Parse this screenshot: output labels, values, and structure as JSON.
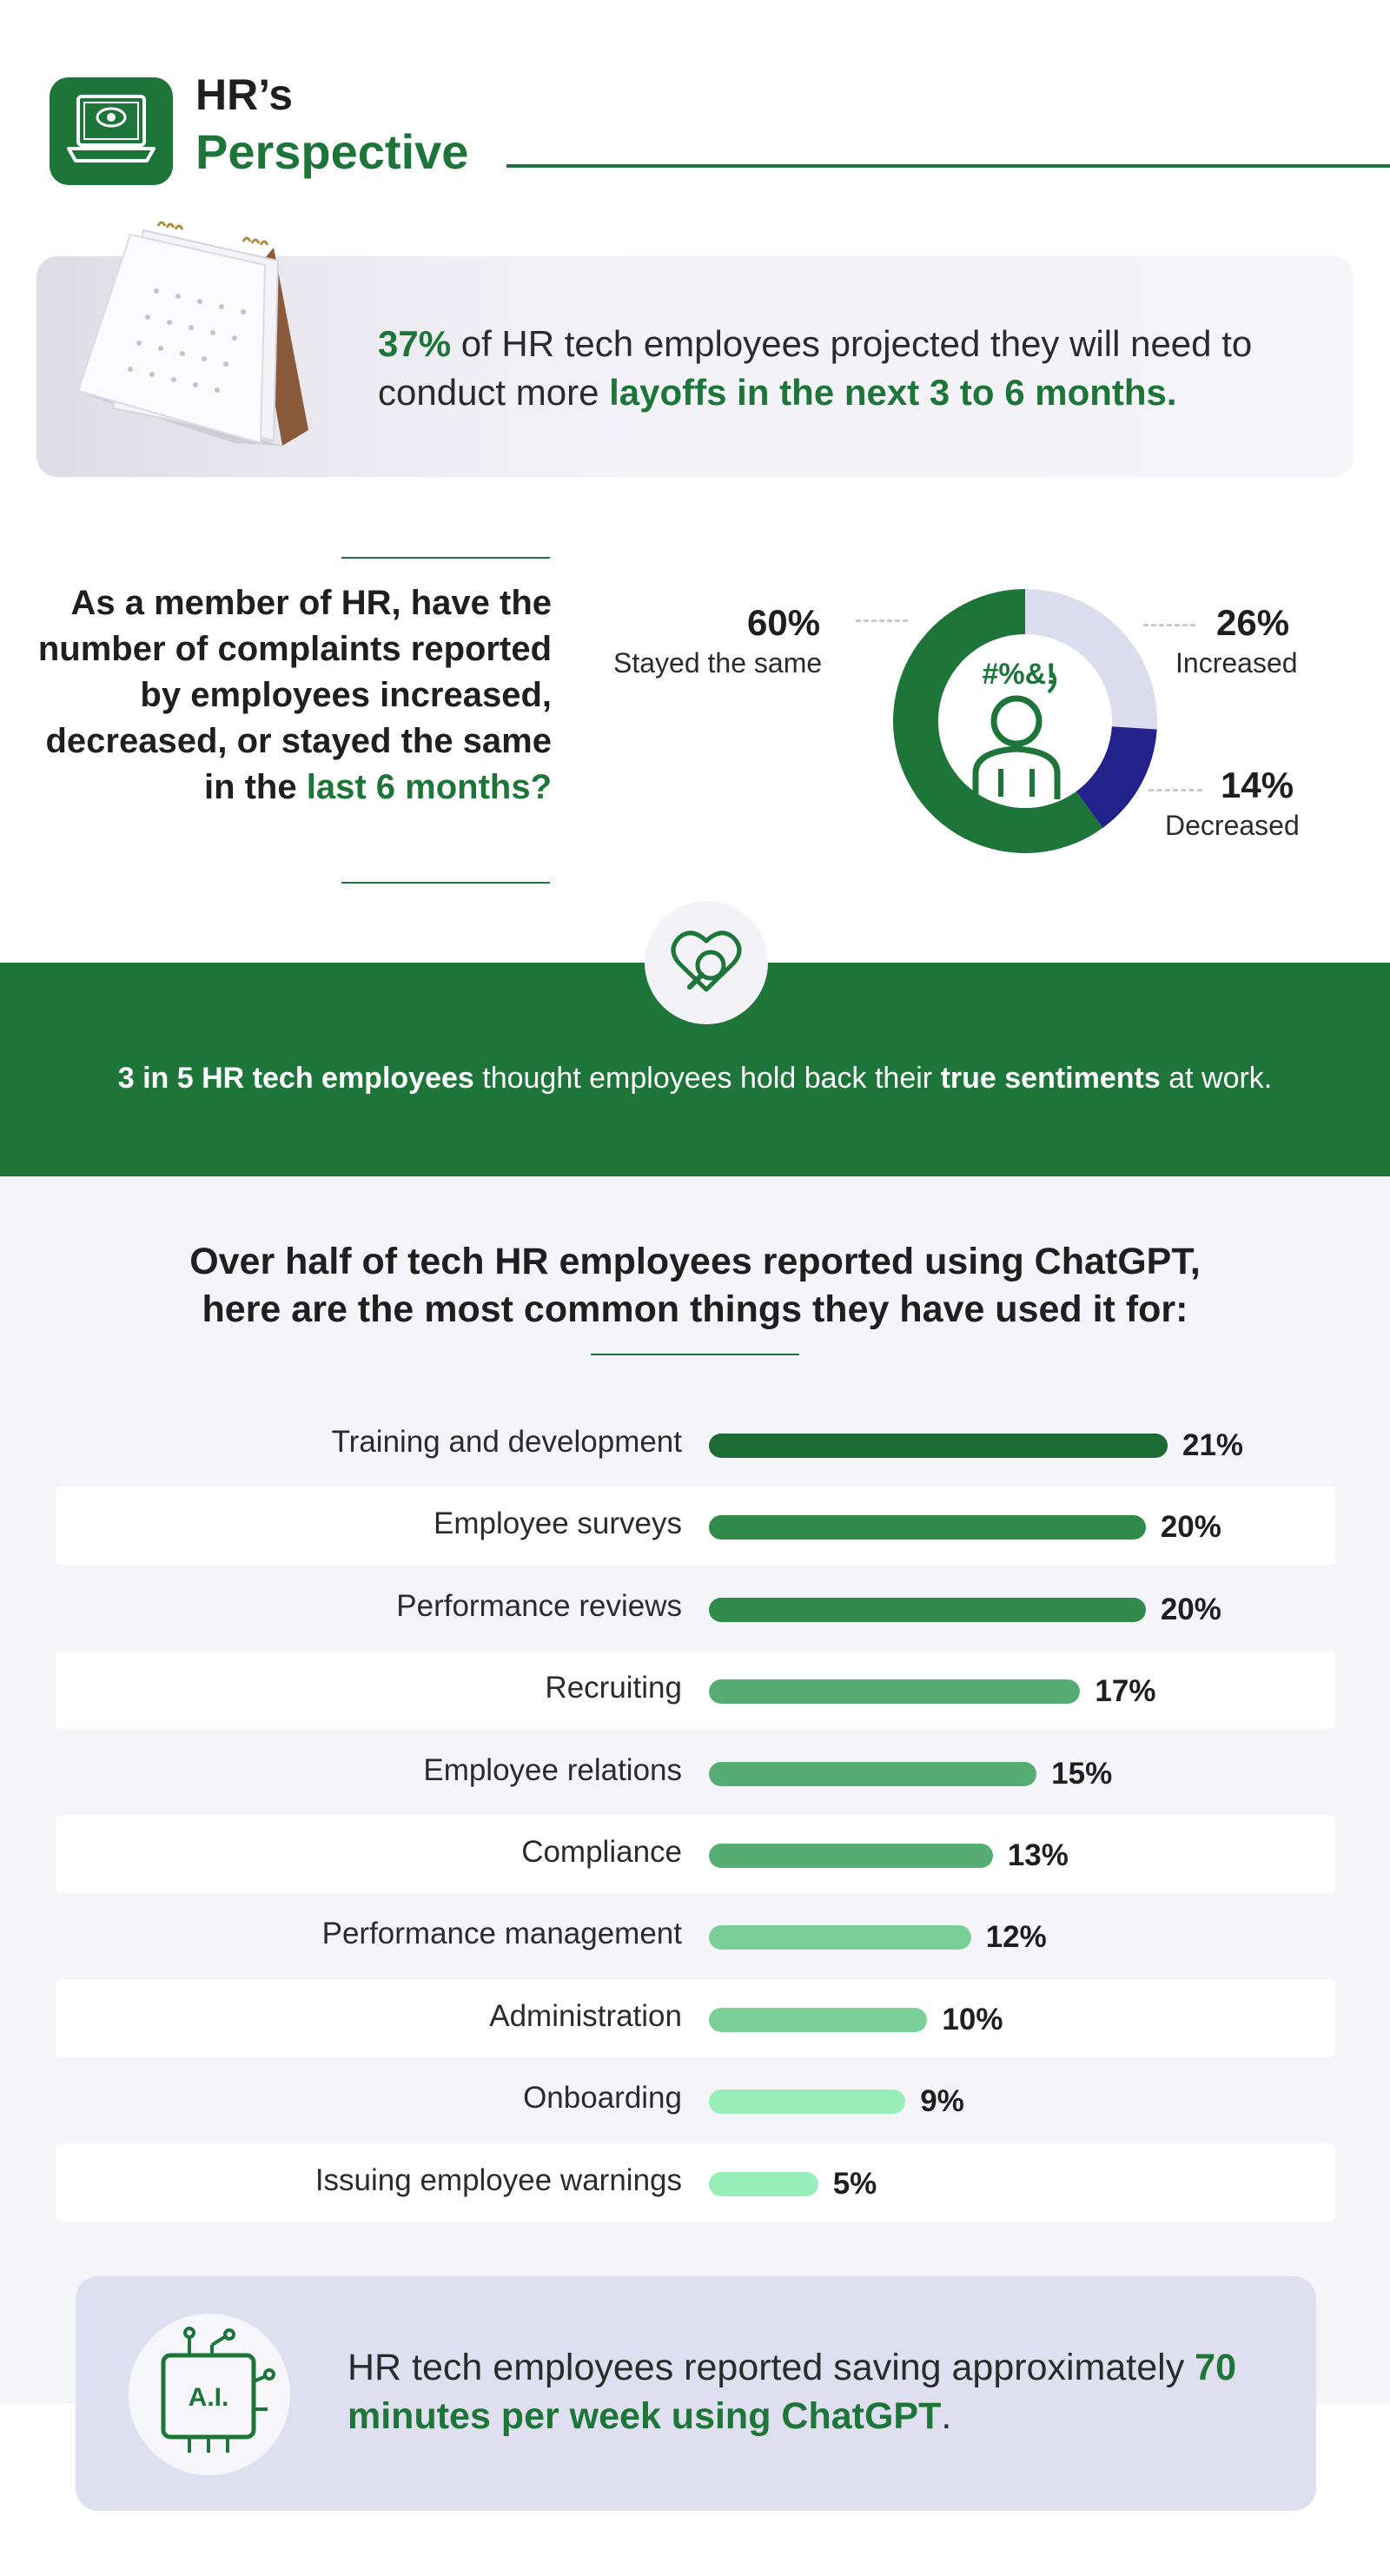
{
  "header": {
    "title_line1": "HR’s",
    "title_line2": "Perspective"
  },
  "layoffs": {
    "stat": "37%",
    "text_a": " of HR tech employees projected they will need to conduct more ",
    "text_b": "layoffs in the next 3 to 6 months."
  },
  "complaints": {
    "question_a": "As a member of HR, have the number of complaints reported by employees increased, decreased, or stayed the same in the ",
    "question_b": "last 6 months?",
    "icon_text": "#%&!"
  },
  "banner": {
    "bold_a": "3 in 5 HR tech employees",
    "text_a": " thought employees hold back their ",
    "bold_b": "true sentiments",
    "text_b": " at work."
  },
  "chatgpt": {
    "title_line1": "Over half of tech HR employees reported using ChatGPT,",
    "title_line2": "here are the most common things they have used it for:"
  },
  "bottom": {
    "text_a": "HR tech employees reported saving approximately ",
    "text_b": "70 minutes per week using ChatGPT",
    "text_c": ".",
    "icon_text": "A.I."
  },
  "colors": {
    "brand_green": "#1e7539",
    "navy": "#23228a",
    "lavender": "#dcdcef"
  },
  "chart_data": [
    {
      "type": "pie",
      "donut": true,
      "slices": [
        {
          "label": "Stayed the same",
          "value": 60,
          "value_label": "60%",
          "color": "#1e7539"
        },
        {
          "label": "Increased",
          "value": 26,
          "value_label": "26%",
          "color": "#dcdcef"
        },
        {
          "label": "Decreased",
          "value": 14,
          "value_label": "14%",
          "color": "#23228a"
        }
      ]
    },
    {
      "type": "bar",
      "orientation": "horizontal",
      "categories": [
        "Training and development",
        "Employee surveys",
        "Performance reviews",
        "Recruiting",
        "Employee relations",
        "Compliance",
        "Performance management",
        "Administration",
        "Onboarding",
        "Issuing employee warnings"
      ],
      "values": [
        21,
        20,
        20,
        17,
        15,
        13,
        12,
        10,
        9,
        5
      ],
      "value_labels": [
        "21%",
        "20%",
        "20%",
        "17%",
        "15%",
        "13%",
        "12%",
        "10%",
        "9%",
        "5%"
      ],
      "colors": [
        "#1b6b33",
        "#2f8a4c",
        "#2f8a4c",
        "#55ad73",
        "#55ad73",
        "#55ad73",
        "#79cf95",
        "#79cf95",
        "#98eeb8",
        "#98eeb8"
      ]
    }
  ]
}
